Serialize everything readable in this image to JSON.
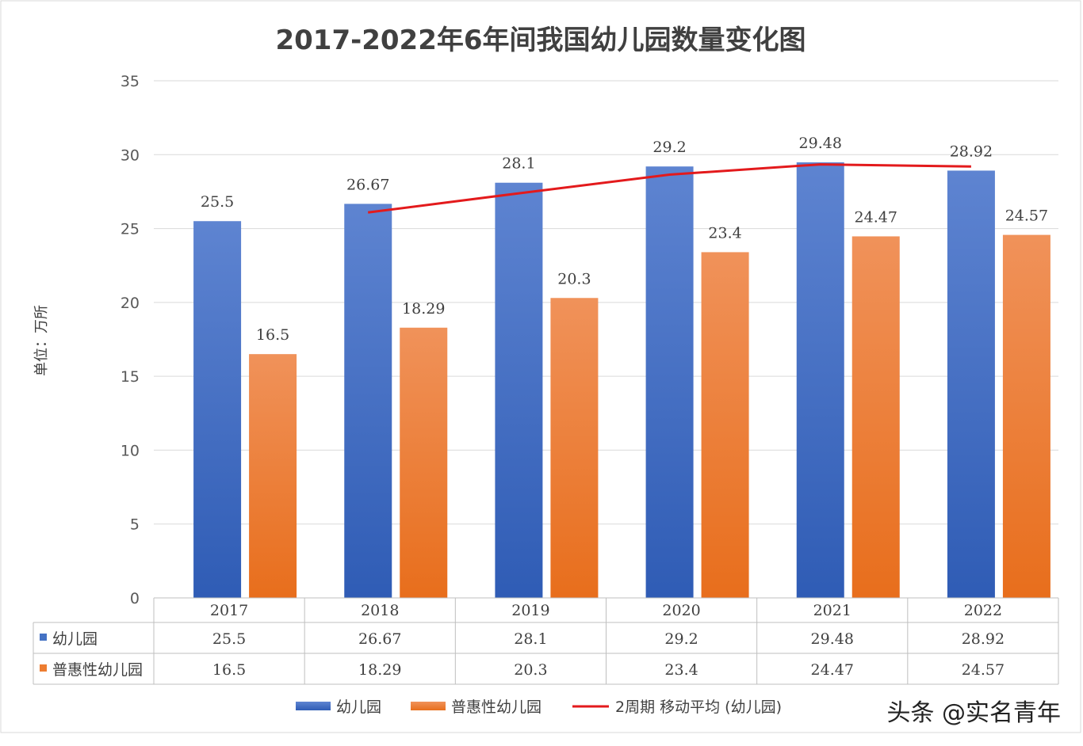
{
  "chart_data": {
    "type": "bar",
    "title": "2017-2022年6年间我国幼儿园数量变化图",
    "ylabel": "单位：万所",
    "xlabel": "",
    "ylim": [
      0,
      35
    ],
    "yticks": [
      "0",
      "5",
      "10",
      "15",
      "20",
      "25",
      "30",
      "35"
    ],
    "grid": true,
    "legend_position": "bottom",
    "categories": [
      "2017",
      "2018",
      "2019",
      "2020",
      "2021",
      "2022"
    ],
    "series": [
      {
        "name": "幼儿园",
        "type": "bar",
        "color": "#4472C4",
        "values": [
          25.5,
          26.67,
          28.1,
          29.2,
          29.48,
          28.92
        ],
        "labels": [
          "25.5",
          "26.67",
          "28.1",
          "29.2",
          "29.48",
          "28.92"
        ]
      },
      {
        "name": "普惠性幼儿园",
        "type": "bar",
        "color": "#ED7D31",
        "values": [
          16.5,
          18.29,
          20.3,
          23.4,
          24.47,
          24.57
        ],
        "labels": [
          "16.5",
          "18.29",
          "20.3",
          "23.4",
          "24.47",
          "24.57"
        ]
      }
    ],
    "trendline": {
      "name": "2周期 移动平均 (幼儿园)",
      "color": "#E31A1C",
      "period": 2,
      "values": [
        null,
        26.085,
        27.385,
        28.65,
        29.34,
        29.2
      ]
    },
    "data_table": true
  },
  "watermark": "头条 @实名青年"
}
